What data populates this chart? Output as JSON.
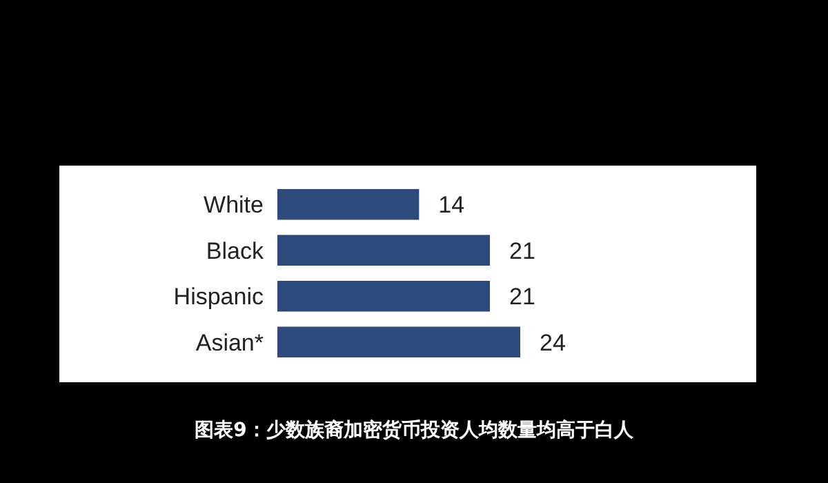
{
  "chart_data": {
    "type": "bar",
    "orientation": "horizontal",
    "categories": [
      "White",
      "Black",
      "Hispanic",
      "Asian*"
    ],
    "values": [
      14,
      21,
      21,
      24
    ],
    "color": "#2c4a7c",
    "data_labels": true,
    "title": "图表9：少数族裔加密货币投资人均数量均高于白人"
  }
}
